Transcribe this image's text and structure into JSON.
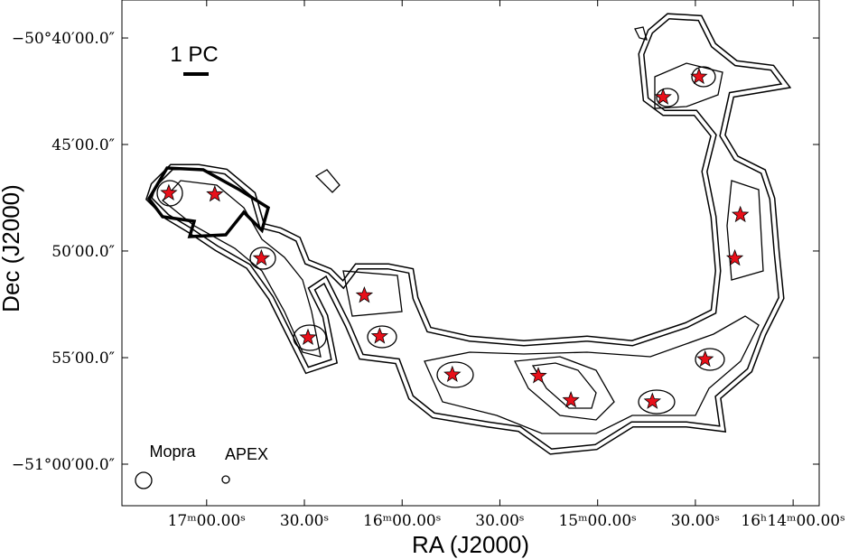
{
  "chart_data": {
    "type": "scatter",
    "xlabel": "RA (J2000)",
    "ylabel": "Dec (J2000)",
    "xlim": [
      1046,
      832
    ],
    "xticks": [
      {
        "value": 1020,
        "label": "17ᵐ00.00ˢ"
      },
      {
        "value": 990,
        "label": "30.00ˢ"
      },
      {
        "value": 960,
        "label": "16ᵐ00.00ˢ"
      },
      {
        "value": 930,
        "label": "30.00ˢ"
      },
      {
        "value": 900,
        "label": "15ᵐ00.00ˢ"
      },
      {
        "value": 870,
        "label": "30.00ˢ"
      },
      {
        "value": 840,
        "label": "16ʰ14ᵐ00.00ˢ"
      }
    ],
    "ylim": [
      -51.0325,
      -50.637
    ],
    "yticks": [
      {
        "value": -50.6667,
        "label": "−50°40′00.0″"
      },
      {
        "value": -50.75,
        "label": "45′00.0″"
      },
      {
        "value": -50.8333,
        "label": "50′00.0″"
      },
      {
        "value": -50.9167,
        "label": "55′00.0″"
      },
      {
        "value": -51.0,
        "label": "−51°00′00.0″"
      }
    ],
    "color": "#e8101a",
    "x": [
      1031.6,
      1017.5,
      1003.2,
      971.6,
      988.9,
      966.9,
      944.6,
      918.2,
      908.2,
      883.2,
      879.9,
      868.9,
      856.2,
      857.9,
      867.0
    ],
    "values": [
      -50.788,
      -50.789,
      -50.839,
      -50.868,
      -50.901,
      -50.9,
      -50.93,
      -50.931,
      -50.95,
      -50.951,
      -50.713,
      -50.697,
      -50.805,
      -50.839,
      -50.918
    ],
    "scale_bar_label": "1 PC",
    "beams": [
      "Mopra",
      "APEX"
    ]
  }
}
